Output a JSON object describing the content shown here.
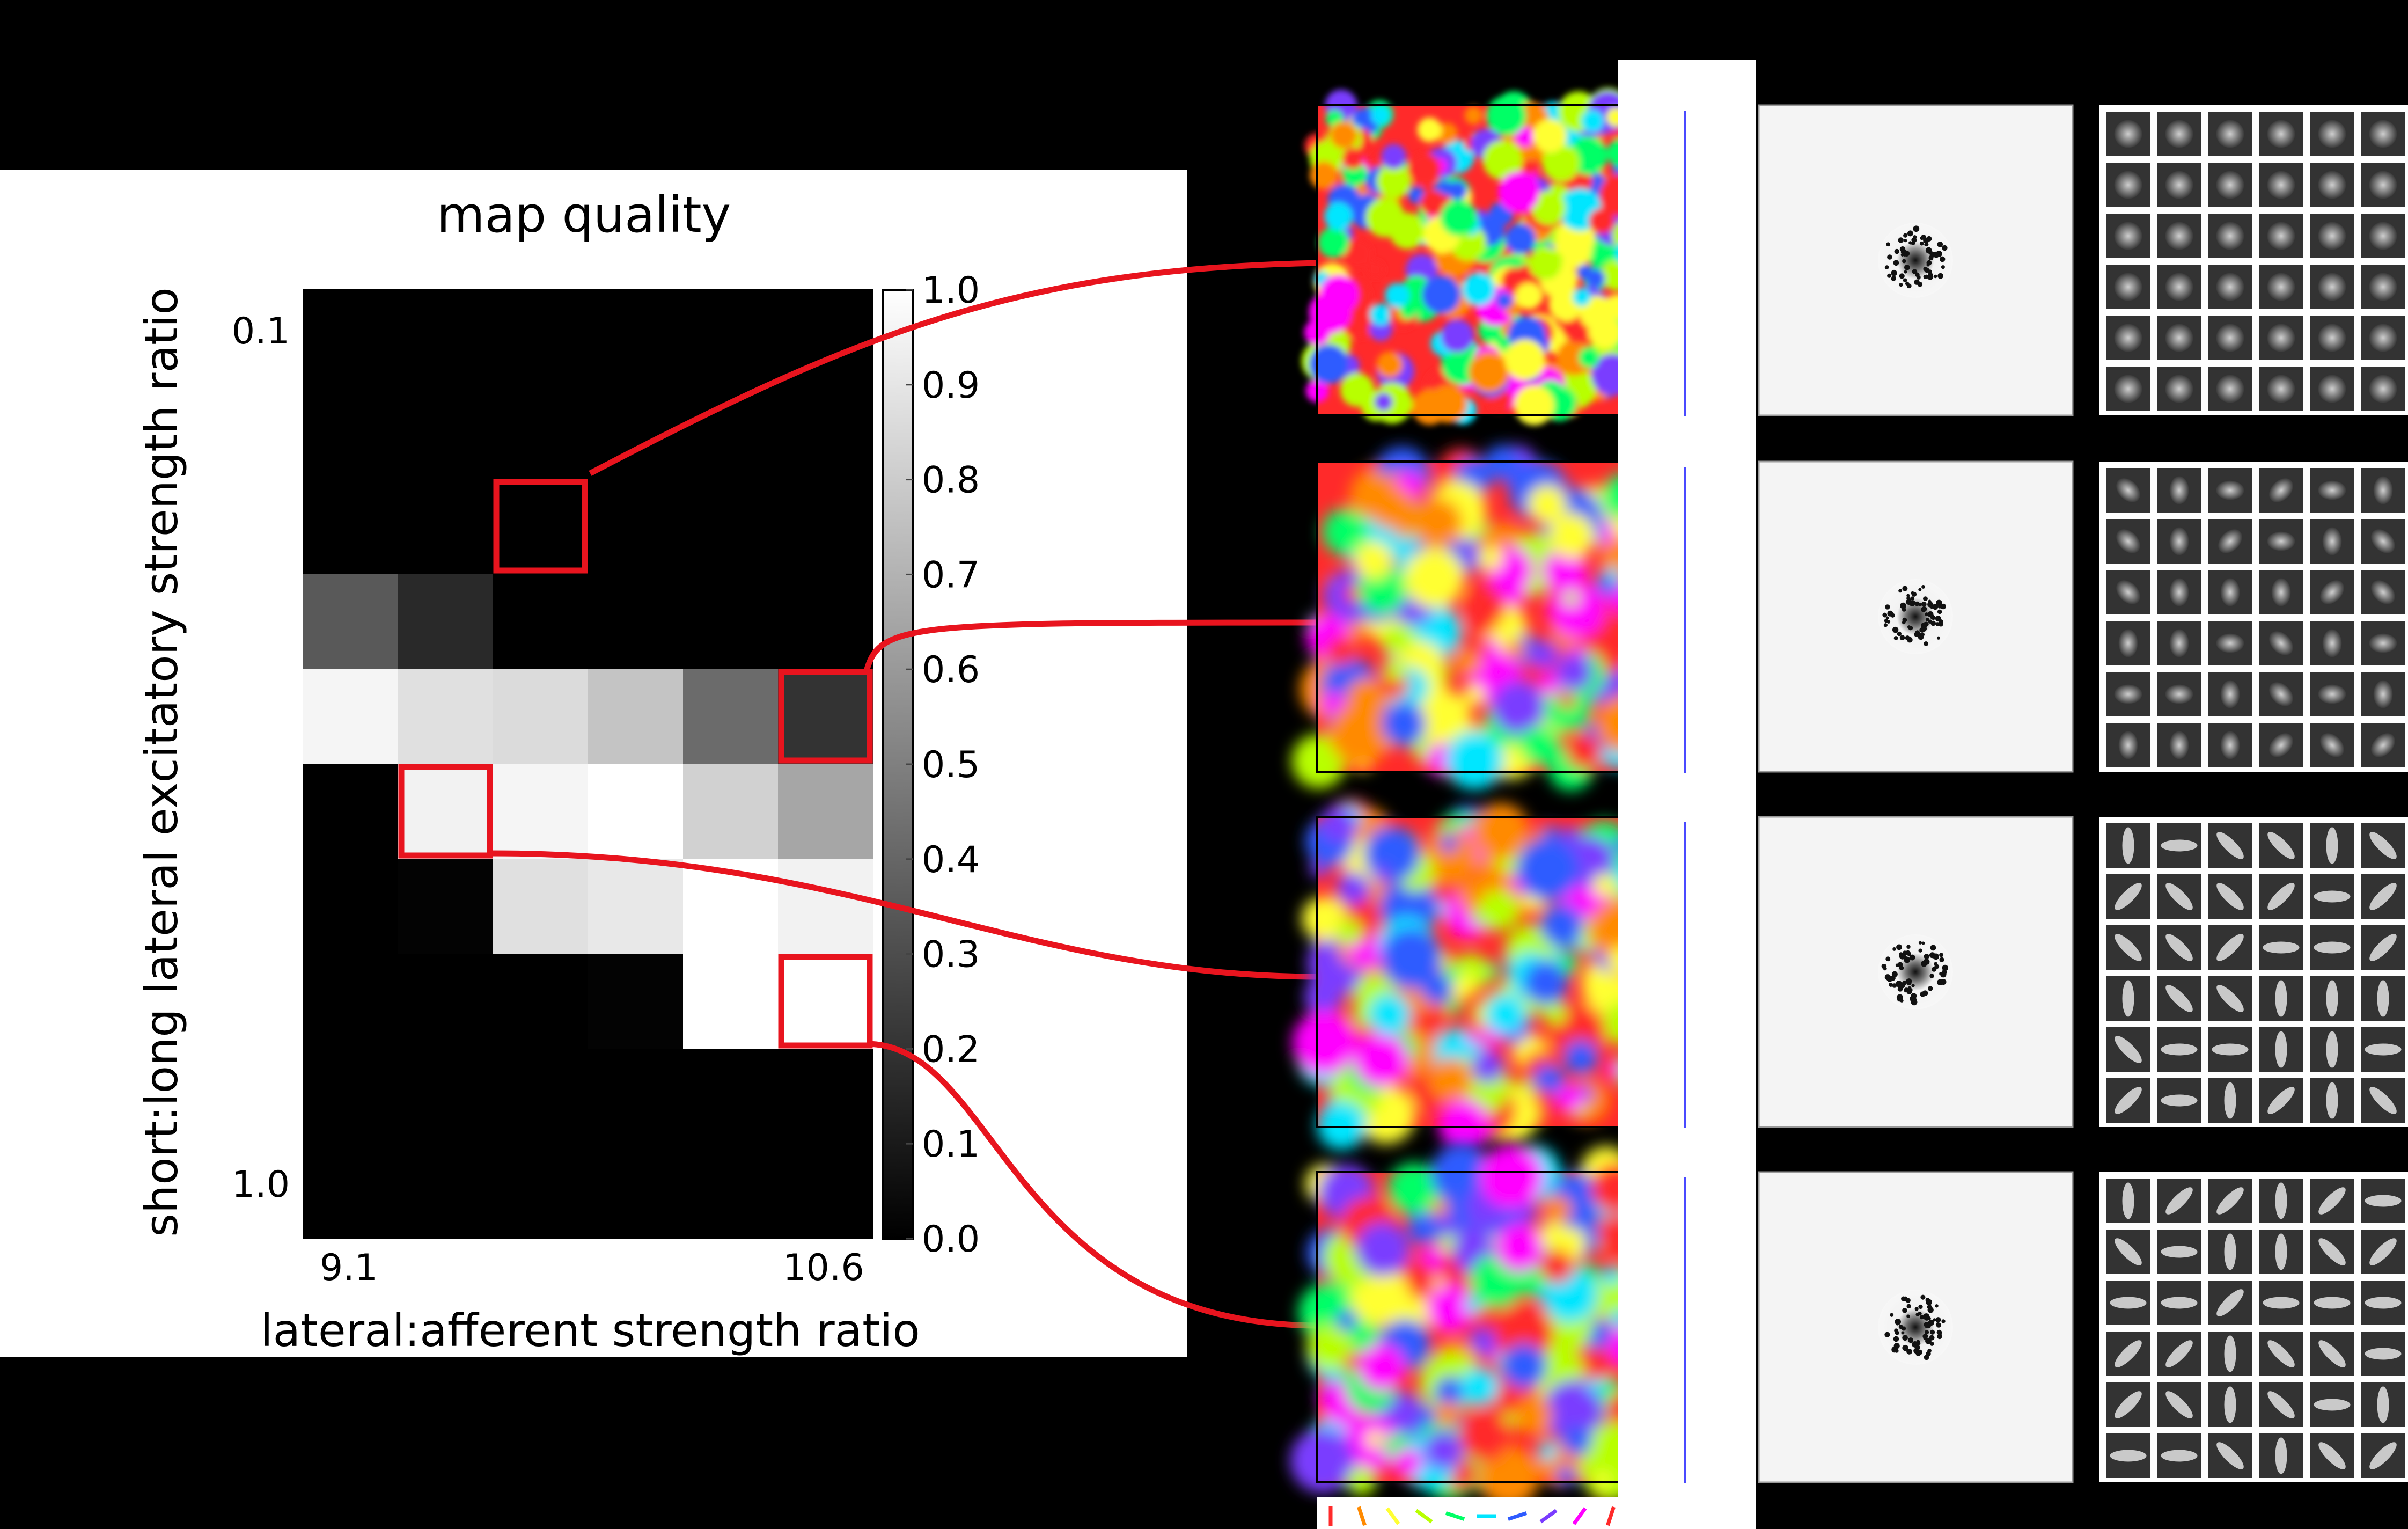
{
  "chart_data": {
    "type": "heatmap",
    "title": "map quality",
    "xlabel": "lateral:afferent strength ratio",
    "ylabel": "short:long lateral excitatory strength ratio",
    "x_tick_labels": [
      "9.1",
      "10.6"
    ],
    "y_tick_labels": [
      "0.1",
      "1.0"
    ],
    "colorbar": {
      "range": [
        0.0,
        1.0
      ],
      "tick_labels": [
        "1.0",
        "0.9",
        "0.8",
        "0.7",
        "0.6",
        "0.5",
        "0.4",
        "0.3",
        "0.2",
        "0.1",
        "0.0"
      ],
      "colormap": "gray"
    },
    "rows": 10,
    "cols": 6,
    "values": [
      [
        0.0,
        0.0,
        0.0,
        0.0,
        0.0,
        0.0
      ],
      [
        0.0,
        0.0,
        0.0,
        0.0,
        0.0,
        0.0
      ],
      [
        0.0,
        0.0,
        0.0,
        0.0,
        0.0,
        0.0
      ],
      [
        0.35,
        0.16,
        0.0,
        0.0,
        0.0,
        0.0
      ],
      [
        0.96,
        0.88,
        0.86,
        0.77,
        0.42,
        0.2
      ],
      [
        0.0,
        0.95,
        0.96,
        1.0,
        0.82,
        0.65
      ],
      [
        0.0,
        0.01,
        0.88,
        0.91,
        1.0,
        0.95
      ],
      [
        0.0,
        0.0,
        0.0,
        0.01,
        1.0,
        1.0
      ],
      [
        0.0,
        0.0,
        0.0,
        0.0,
        0.0,
        0.0
      ],
      [
        0.0,
        0.0,
        0.0,
        0.0,
        0.0,
        0.0
      ]
    ],
    "highlighted_cells": [
      {
        "row": 2,
        "col": 2
      },
      {
        "row": 4,
        "col": 5
      },
      {
        "row": 5,
        "col": 1
      },
      {
        "row": 7,
        "col": 5
      }
    ],
    "colors": {
      "highlight": "#e8141e"
    }
  }
}
